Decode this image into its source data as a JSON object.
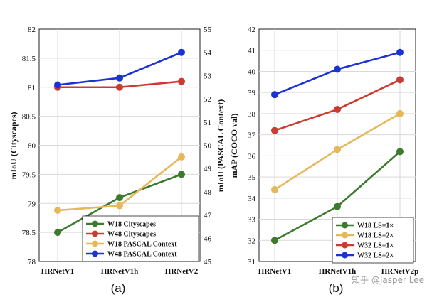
{
  "chart_data": [
    {
      "type": "line",
      "panel_label": "(a)",
      "categories": [
        "HRNetV1",
        "HRNetV1h",
        "HRNetV2"
      ],
      "ylabel_left": "mIoU (Cityscapes)",
      "ylabel_right": "mIoU (PASCAL Context)",
      "ylim_left": [
        78,
        82
      ],
      "yticks_left": [
        "78",
        "78.5",
        "79",
        "79.5",
        "80",
        "80.5",
        "81",
        "81.5",
        "82"
      ],
      "ylim_right": [
        45,
        55
      ],
      "yticks_right": [
        "45",
        "46",
        "47",
        "48",
        "49",
        "50",
        "51",
        "52",
        "53",
        "54",
        "55"
      ],
      "grid": true,
      "legend_position": "bottom-right",
      "series": [
        {
          "name": "W18 Cityscapes",
          "axis": "left",
          "color": "#3d7a2e",
          "values": [
            78.5,
            79.1,
            79.5
          ]
        },
        {
          "name": "W48 Cityscapes",
          "axis": "left",
          "color": "#cc3b32",
          "values": [
            81.0,
            81.0,
            81.1
          ]
        },
        {
          "name": "W18 PASCAL Context",
          "axis": "right",
          "color": "#e6b85a",
          "values": [
            47.2,
            47.4,
            49.5
          ]
        },
        {
          "name": "W48 PASCAL Context",
          "axis": "right",
          "color": "#1c33d4",
          "values": [
            52.6,
            52.9,
            54.0
          ]
        }
      ]
    },
    {
      "type": "line",
      "panel_label": "(b)",
      "categories": [
        "HRNetV1",
        "HRNetV1h",
        "HRNetV2p"
      ],
      "ylabel": "mAP (COCO val)",
      "ylim": [
        31,
        42
      ],
      "yticks": [
        "31",
        "32",
        "33",
        "34",
        "35",
        "36",
        "37",
        "38",
        "39",
        "40",
        "41",
        "42"
      ],
      "grid": true,
      "legend_position": "bottom-right",
      "series": [
        {
          "name": "W18 LS=1×",
          "color": "#3d7a2e",
          "values": [
            32.0,
            33.6,
            36.2
          ]
        },
        {
          "name": "W18 LS=2×",
          "color": "#e6b85a",
          "values": [
            34.4,
            36.3,
            38.0
          ]
        },
        {
          "name": "W32 LS=1×",
          "color": "#cc3b32",
          "values": [
            37.2,
            38.2,
            39.6
          ]
        },
        {
          "name": "W32 LS=2×",
          "color": "#1c33d4",
          "values": [
            38.9,
            40.1,
            40.9
          ]
        }
      ]
    }
  ],
  "watermark": "知乎 @Jasper Lee"
}
